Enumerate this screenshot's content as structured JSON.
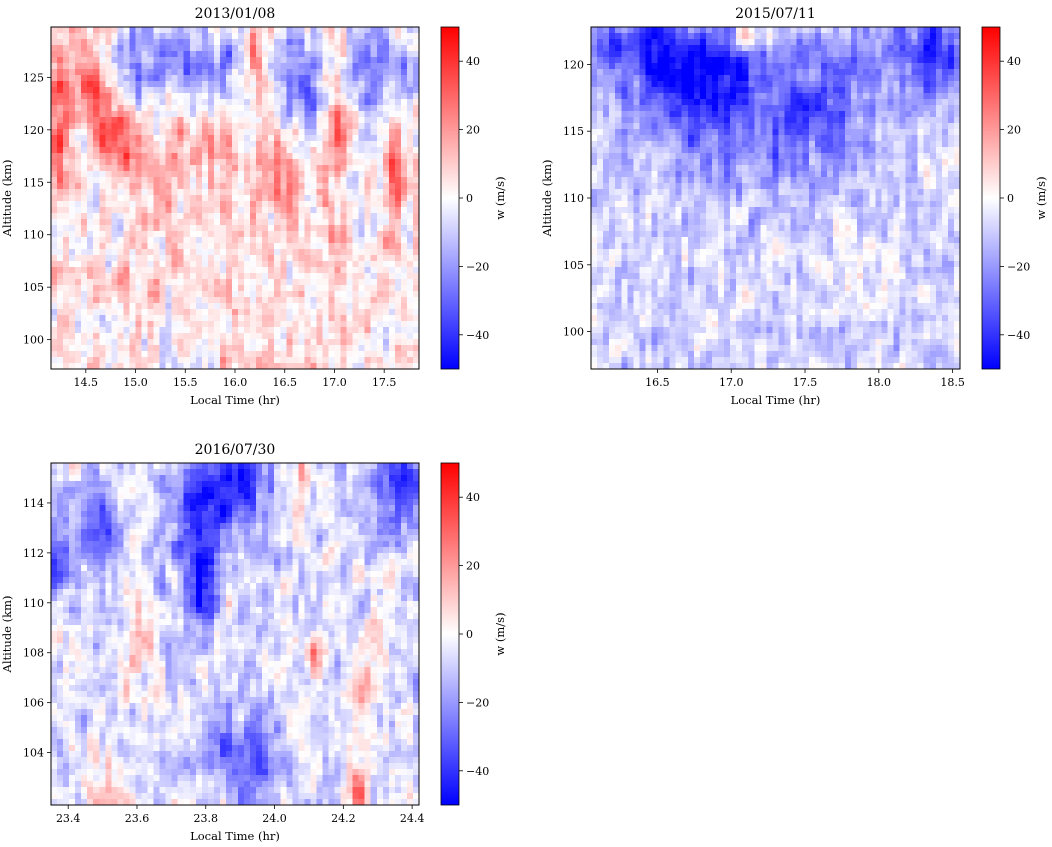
{
  "colorbar": {
    "label": "w (m/s)",
    "range": [
      -50,
      50
    ],
    "ticks": [
      40,
      20,
      0,
      -20,
      -40
    ],
    "tick_labels": [
      "40",
      "20",
      "0",
      "−20",
      "−40"
    ],
    "colors": {
      "min": "#0000ff",
      "mid": "#ffffff",
      "max": "#ff0000"
    }
  },
  "chart_data": [
    {
      "type": "heatmap",
      "title": "2013/01/08",
      "xlabel": "Local Time (hr)",
      "ylabel": "Altitude (km)",
      "xlim": [
        14.15,
        17.85
      ],
      "ylim": [
        97.2,
        129.8
      ],
      "xticks": [
        14.5,
        15.0,
        15.5,
        16.0,
        16.5,
        17.0,
        17.5
      ],
      "xtick_labels": [
        "14.5",
        "15.0",
        "15.5",
        "16.0",
        "16.5",
        "17.0",
        "17.5"
      ],
      "yticks": [
        100,
        105,
        110,
        115,
        120,
        125
      ],
      "ytick_labels": [
        "100",
        "105",
        "110",
        "115",
        "120",
        "125"
      ],
      "grid": false,
      "features": [
        {
          "x": 14.72,
          "y": 121.5,
          "w_ms": 32,
          "sx": 0.16,
          "sy": 4.5,
          "tilt": -0.04
        },
        {
          "x": 14.22,
          "y": 122.0,
          "w_ms": 26,
          "sx": 0.1,
          "sy": 4.5,
          "tilt": 0
        },
        {
          "x": 15.1,
          "y": 126.5,
          "w_ms": -28,
          "sx": 0.28,
          "sy": 3.0,
          "tilt": 0
        },
        {
          "x": 15.75,
          "y": 126.5,
          "w_ms": -24,
          "sx": 0.25,
          "sy": 3.0,
          "tilt": 0
        },
        {
          "x": 16.25,
          "y": 126.0,
          "w_ms": 30,
          "sx": 0.1,
          "sy": 3.5,
          "tilt": 0
        },
        {
          "x": 16.62,
          "y": 124.5,
          "w_ms": -34,
          "sx": 0.26,
          "sy": 4.0,
          "tilt": 0
        },
        {
          "x": 16.42,
          "y": 117.0,
          "w_ms": 25,
          "sx": 0.12,
          "sy": 3.5,
          "tilt": 0
        },
        {
          "x": 17.0,
          "y": 123.0,
          "w_ms": 28,
          "sx": 0.09,
          "sy": 6.0,
          "tilt": 0
        },
        {
          "x": 17.42,
          "y": 126.0,
          "w_ms": -32,
          "sx": 0.3,
          "sy": 3.0,
          "tilt": 0
        },
        {
          "x": 17.62,
          "y": 116.0,
          "w_ms": 24,
          "sx": 0.08,
          "sy": 3.5,
          "tilt": 0
        },
        {
          "x": 15.5,
          "y": 118.0,
          "w_ms": 12,
          "sx": 0.4,
          "sy": 3.0,
          "tilt": 0
        }
      ],
      "background": {
        "bias_w_ms": 4,
        "noise_w_ms": 13
      }
    },
    {
      "type": "heatmap",
      "title": "2015/07/11",
      "xlabel": "Local Time (hr)",
      "ylabel": "Altitude (km)",
      "xlim": [
        16.05,
        18.55
      ],
      "ylim": [
        97.2,
        122.8
      ],
      "xticks": [
        16.5,
        17.0,
        17.5,
        18.0,
        18.5
      ],
      "xtick_labels": [
        "16.5",
        "17.0",
        "17.5",
        "18.0",
        "18.5"
      ],
      "yticks": [
        100,
        105,
        110,
        115,
        120
      ],
      "ytick_labels": [
        "100",
        "105",
        "110",
        "115",
        "120"
      ],
      "grid": false,
      "features": [
        {
          "x": 16.55,
          "y": 120.5,
          "w_ms": -34,
          "sx": 0.2,
          "sy": 2.5,
          "tilt": 0
        },
        {
          "x": 16.9,
          "y": 119.0,
          "w_ms": -36,
          "sx": 0.2,
          "sy": 2.5,
          "tilt": 0
        },
        {
          "x": 16.2,
          "y": 121.5,
          "w_ms": -28,
          "sx": 0.12,
          "sy": 1.5,
          "tilt": 0
        },
        {
          "x": 18.35,
          "y": 121.0,
          "w_ms": -34,
          "sx": 0.2,
          "sy": 2.5,
          "tilt": 0
        },
        {
          "x": 17.6,
          "y": 117.5,
          "w_ms": -24,
          "sx": 0.25,
          "sy": 3.5,
          "tilt": 0
        },
        {
          "x": 17.1,
          "y": 122.3,
          "w_ms": 32,
          "sx": 0.05,
          "sy": 0.8,
          "tilt": 0
        },
        {
          "x": 17.0,
          "y": 114.0,
          "w_ms": -14,
          "sx": 0.5,
          "sy": 3.0,
          "tilt": 0
        }
      ],
      "background": {
        "bias_w_ms": -7,
        "noise_w_ms": 11
      }
    },
    {
      "type": "heatmap",
      "title": "2016/07/30",
      "xlabel": "Local Time (hr)",
      "ylabel": "Altitude (km)",
      "xlim": [
        23.35,
        24.42
      ],
      "ylim": [
        101.9,
        115.6
      ],
      "xticks": [
        23.4,
        23.6,
        23.8,
        24.0,
        24.2,
        24.4
      ],
      "xtick_labels": [
        "23.4",
        "23.6",
        "23.8",
        "24.0",
        "24.2",
        "24.4"
      ],
      "yticks": [
        104,
        106,
        108,
        110,
        112,
        114
      ],
      "ytick_labels": [
        "104",
        "106",
        "108",
        "110",
        "112",
        "114"
      ],
      "grid": false,
      "features": [
        {
          "x": 23.78,
          "y": 113.5,
          "w_ms": -36,
          "sx": 0.06,
          "sy": 2.0,
          "tilt": 0
        },
        {
          "x": 23.9,
          "y": 114.5,
          "w_ms": -30,
          "sx": 0.06,
          "sy": 1.2,
          "tilt": 0
        },
        {
          "x": 24.36,
          "y": 114.5,
          "w_ms": -36,
          "sx": 0.06,
          "sy": 1.3,
          "tilt": 0
        },
        {
          "x": 23.37,
          "y": 111.5,
          "w_ms": -30,
          "sx": 0.03,
          "sy": 1.0,
          "tilt": 0
        },
        {
          "x": 23.48,
          "y": 113.0,
          "w_ms": -24,
          "sx": 0.05,
          "sy": 1.2,
          "tilt": 0
        },
        {
          "x": 23.79,
          "y": 110.5,
          "w_ms": -30,
          "sx": 0.025,
          "sy": 1.0,
          "tilt": 0
        },
        {
          "x": 23.87,
          "y": 104.0,
          "w_ms": -22,
          "sx": 0.05,
          "sy": 1.2,
          "tilt": 0
        },
        {
          "x": 23.96,
          "y": 103.5,
          "w_ms": -26,
          "sx": 0.035,
          "sy": 1.0,
          "tilt": 0
        },
        {
          "x": 24.24,
          "y": 102.6,
          "w_ms": 34,
          "sx": 0.022,
          "sy": 0.8,
          "tilt": 0
        },
        {
          "x": 24.26,
          "y": 106.5,
          "w_ms": 22,
          "sx": 0.02,
          "sy": 1.0,
          "tilt": 0
        },
        {
          "x": 24.3,
          "y": 109.0,
          "w_ms": 18,
          "sx": 0.018,
          "sy": 1.2,
          "tilt": 0
        },
        {
          "x": 23.6,
          "y": 108.5,
          "w_ms": 18,
          "sx": 0.025,
          "sy": 1.5,
          "tilt": 0
        },
        {
          "x": 24.12,
          "y": 108.0,
          "w_ms": 22,
          "sx": 0.02,
          "sy": 0.7,
          "tilt": 0
        },
        {
          "x": 23.55,
          "y": 102.5,
          "w_ms": 14,
          "sx": 0.06,
          "sy": 0.8,
          "tilt": 0
        },
        {
          "x": 24.08,
          "y": 115.0,
          "w_ms": 20,
          "sx": 0.02,
          "sy": 1.0,
          "tilt": 0
        }
      ],
      "background": {
        "bias_w_ms": -6,
        "noise_w_ms": 12
      }
    }
  ]
}
